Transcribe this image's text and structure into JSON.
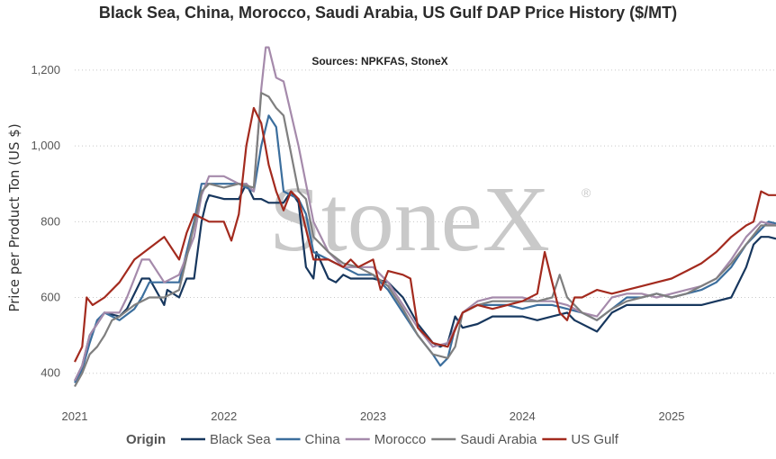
{
  "chart_data": {
    "type": "line",
    "title": "Black Sea, China, Morocco, Saudi Arabia, US Gulf DAP Price History ($/MT)",
    "subtitle": "Sources: NPKFAS, StoneX",
    "xlabel": "",
    "ylabel": "Price per Product Ton (US $)",
    "xlim": [
      2021.0,
      2025.7
    ],
    "ylim": [
      340,
      1290
    ],
    "yticks": [
      400,
      600,
      800,
      1000,
      1200
    ],
    "ytick_labels": [
      "400",
      "600",
      "800",
      "1,000",
      "1,200"
    ],
    "xticks": [
      2021,
      2022,
      2023,
      2024,
      2025
    ],
    "xtick_labels": [
      "2021",
      "2022",
      "2023",
      "2024",
      "2025"
    ],
    "grid": "horizontal dotted",
    "legend": {
      "title": "Origin",
      "position": "bottom"
    },
    "watermark": "StoneX",
    "watermark_mark": "®",
    "series": [
      {
        "name": "Black Sea",
        "color": "#17375e",
        "x": [
          2021.0,
          2021.05,
          2021.1,
          2021.2,
          2021.3,
          2021.35,
          2021.45,
          2021.5,
          2021.6,
          2021.62,
          2021.7,
          2021.75,
          2021.8,
          2021.85,
          2021.88,
          2021.9,
          2022.0,
          2022.1,
          2022.15,
          2022.2,
          2022.25,
          2022.3,
          2022.4,
          2022.45,
          2022.5,
          2022.55,
          2022.6,
          2022.62,
          2022.7,
          2022.75,
          2022.8,
          2022.85,
          2022.9,
          2023.0,
          2023.1,
          2023.2,
          2023.3,
          2023.4,
          2023.45,
          2023.5,
          2023.55,
          2023.6,
          2023.7,
          2023.8,
          2023.9,
          2024.0,
          2024.1,
          2024.2,
          2024.3,
          2024.35,
          2024.5,
          2024.6,
          2024.7,
          2024.8,
          2024.9,
          2025.0,
          2025.1,
          2025.2,
          2025.3,
          2025.4,
          2025.5,
          2025.55,
          2025.6,
          2025.65,
          2025.7
        ],
        "y": [
          380,
          420,
          500,
          560,
          550,
          570,
          650,
          650,
          580,
          620,
          600,
          650,
          650,
          800,
          850,
          870,
          860,
          860,
          900,
          860,
          860,
          850,
          850,
          880,
          850,
          680,
          650,
          720,
          650,
          640,
          660,
          650,
          650,
          650,
          640,
          600,
          530,
          480,
          470,
          480,
          550,
          520,
          530,
          550,
          550,
          550,
          540,
          550,
          560,
          540,
          510,
          560,
          580,
          580,
          580,
          580,
          580,
          580,
          590,
          600,
          680,
          740,
          760,
          760,
          755
        ]
      },
      {
        "name": "China",
        "color": "#3b6e9d",
        "x": [
          2021.0,
          2021.05,
          2021.1,
          2021.15,
          2021.2,
          2021.3,
          2021.4,
          2021.45,
          2021.5,
          2021.6,
          2021.7,
          2021.8,
          2021.85,
          2021.9,
          2022.0,
          2022.1,
          2022.2,
          2022.25,
          2022.3,
          2022.35,
          2022.4,
          2022.5,
          2022.55,
          2022.6,
          2022.7,
          2022.8,
          2022.9,
          2023.0,
          2023.1,
          2023.2,
          2023.3,
          2023.4,
          2023.45,
          2023.5,
          2023.55,
          2023.6,
          2023.7,
          2023.8,
          2023.9,
          2024.0,
          2024.1,
          2024.2,
          2024.3,
          2024.4,
          2024.5,
          2024.6,
          2024.7,
          2024.8,
          2024.9,
          2025.0,
          2025.1,
          2025.2,
          2025.3,
          2025.4,
          2025.5,
          2025.6,
          2025.65,
          2025.7
        ],
        "y": [
          375,
          410,
          480,
          540,
          560,
          540,
          570,
          600,
          640,
          640,
          640,
          800,
          900,
          900,
          900,
          900,
          880,
          1000,
          1080,
          1050,
          880,
          860,
          820,
          720,
          700,
          680,
          660,
          660,
          620,
          560,
          500,
          450,
          420,
          440,
          520,
          560,
          580,
          580,
          580,
          570,
          580,
          580,
          570,
          560,
          540,
          570,
          600,
          600,
          610,
          600,
          610,
          620,
          640,
          680,
          740,
          780,
          800,
          795
        ]
      },
      {
        "name": "Morocco",
        "color": "#a58aab",
        "x": [
          2021.0,
          2021.05,
          2021.1,
          2021.2,
          2021.3,
          2021.35,
          2021.4,
          2021.45,
          2021.5,
          2021.6,
          2021.7,
          2021.8,
          2021.85,
          2021.9,
          2022.0,
          2022.1,
          2022.15,
          2022.2,
          2022.25,
          2022.28,
          2022.3,
          2022.35,
          2022.4,
          2022.5,
          2022.55,
          2022.6,
          2022.7,
          2022.8,
          2022.9,
          2023.0,
          2023.1,
          2023.2,
          2023.3,
          2023.4,
          2023.5,
          2023.6,
          2023.7,
          2023.8,
          2023.9,
          2024.0,
          2024.1,
          2024.2,
          2024.3,
          2024.4,
          2024.5,
          2024.6,
          2024.7,
          2024.8,
          2024.9,
          2025.0,
          2025.1,
          2025.2,
          2025.3,
          2025.4,
          2025.5,
          2025.6,
          2025.7
        ],
        "y": [
          380,
          420,
          500,
          560,
          560,
          600,
          650,
          700,
          700,
          640,
          660,
          760,
          870,
          920,
          920,
          900,
          900,
          880,
          1150,
          1260,
          1260,
          1180,
          1170,
          1000,
          900,
          800,
          720,
          680,
          680,
          680,
          640,
          580,
          520,
          470,
          480,
          560,
          590,
          600,
          600,
          600,
          590,
          590,
          580,
          560,
          550,
          600,
          610,
          610,
          600,
          610,
          620,
          630,
          650,
          700,
          760,
          800,
          790
        ]
      },
      {
        "name": "Saudi Arabia",
        "color": "#7f7f7f",
        "x": [
          2021.0,
          2021.05,
          2021.1,
          2021.15,
          2021.2,
          2021.25,
          2021.3,
          2021.4,
          2021.5,
          2021.6,
          2021.7,
          2021.8,
          2021.85,
          2021.9,
          2022.0,
          2022.1,
          2022.2,
          2022.25,
          2022.3,
          2022.35,
          2022.4,
          2022.5,
          2022.55,
          2022.6,
          2022.7,
          2022.8,
          2022.9,
          2023.0,
          2023.1,
          2023.2,
          2023.3,
          2023.4,
          2023.5,
          2023.55,
          2023.6,
          2023.7,
          2023.8,
          2023.9,
          2024.0,
          2024.1,
          2024.2,
          2024.25,
          2024.3,
          2024.4,
          2024.5,
          2024.6,
          2024.7,
          2024.8,
          2024.9,
          2025.0,
          2025.1,
          2025.2,
          2025.3,
          2025.4,
          2025.5,
          2025.6,
          2025.7
        ],
        "y": [
          365,
          400,
          450,
          470,
          500,
          540,
          550,
          580,
          600,
          600,
          620,
          790,
          880,
          900,
          890,
          900,
          890,
          1140,
          1130,
          1100,
          1080,
          880,
          860,
          760,
          720,
          690,
          680,
          660,
          630,
          570,
          500,
          450,
          440,
          470,
          560,
          580,
          590,
          590,
          590,
          590,
          600,
          660,
          600,
          560,
          540,
          570,
          590,
          600,
          610,
          600,
          610,
          630,
          650,
          690,
          740,
          790,
          790
        ]
      },
      {
        "name": "US Gulf",
        "color": "#a32a1e",
        "x": [
          2021.0,
          2021.05,
          2021.08,
          2021.12,
          2021.2,
          2021.3,
          2021.4,
          2021.5,
          2021.6,
          2021.7,
          2021.75,
          2021.8,
          2021.85,
          2021.9,
          2022.0,
          2022.05,
          2022.1,
          2022.15,
          2022.2,
          2022.25,
          2022.3,
          2022.35,
          2022.4,
          2022.45,
          2022.5,
          2022.55,
          2022.6,
          2022.7,
          2022.8,
          2022.85,
          2022.9,
          2023.0,
          2023.05,
          2023.1,
          2023.2,
          2023.25,
          2023.3,
          2023.35,
          2023.4,
          2023.5,
          2023.6,
          2023.7,
          2023.8,
          2023.9,
          2024.0,
          2024.1,
          2024.15,
          2024.2,
          2024.25,
          2024.3,
          2024.35,
          2024.4,
          2024.5,
          2024.6,
          2024.7,
          2024.8,
          2024.9,
          2025.0,
          2025.1,
          2025.2,
          2025.3,
          2025.4,
          2025.5,
          2025.55,
          2025.6,
          2025.65,
          2025.7
        ],
        "y": [
          430,
          470,
          600,
          580,
          600,
          640,
          700,
          730,
          760,
          700,
          770,
          820,
          810,
          800,
          800,
          750,
          820,
          1000,
          1100,
          1060,
          950,
          880,
          830,
          880,
          860,
          780,
          700,
          700,
          680,
          700,
          680,
          700,
          620,
          670,
          660,
          650,
          520,
          500,
          480,
          470,
          560,
          580,
          570,
          580,
          590,
          610,
          720,
          640,
          560,
          540,
          600,
          600,
          620,
          610,
          620,
          630,
          640,
          650,
          670,
          690,
          720,
          760,
          790,
          800,
          880,
          870,
          870
        ]
      }
    ]
  }
}
